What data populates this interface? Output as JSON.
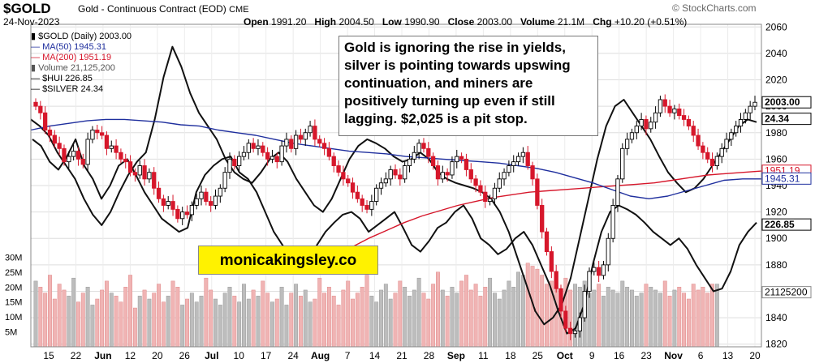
{
  "header": {
    "symbol": "$GOLD",
    "description": "Gold - Continuous Contract (EOD)",
    "exchange": "CME",
    "date": "24-Nov-2023",
    "open_label": "Open",
    "open": "1991.20",
    "high_label": "High",
    "high": "2004.50",
    "low_label": "Low",
    "low": "1990.90",
    "close_label": "Close",
    "close": "2003.00",
    "volume_label": "Volume",
    "volume": "21.1M",
    "chg_label": "Chg",
    "chg": "+10.20 (+0.51%)",
    "source": "© StockCharts.com"
  },
  "legend": {
    "gold": "$GOLD (Daily) 2003.00",
    "ma50": "MA(50) 1945.31",
    "ma200": "MA(200) 1951.19",
    "volume": "Volume 21,125,200",
    "hui": "$HUI 226.85",
    "silver": "$SILVER 24.34"
  },
  "annotation": "Gold is ignoring the rise in yields, silver is pointing towards upswing continuation, and miners are positively turning up even if still lagging. $2,025 is a pit stop.",
  "watermark": "monicakingsley.co",
  "colors": {
    "up": "#000000",
    "down": "#d6172b",
    "ma50": "#1f2f9e",
    "ma200": "#d6172b",
    "vol_up": "#bdbdbd",
    "vol_down": "#f0b4b4",
    "hui": "#111111",
    "silver": "#111111"
  },
  "chart_data": {
    "type": "line",
    "title": "$GOLD (Daily) 2003.00",
    "x_ticks": [
      "15",
      "22",
      "Jun",
      "12",
      "20",
      "26",
      "Jul",
      "10",
      "17",
      "24",
      "Aug",
      "7",
      "14",
      "21",
      "28",
      "Sep",
      "11",
      "18",
      "25",
      "Oct",
      "9",
      "16",
      "23",
      "Nov",
      "6",
      "13",
      "20"
    ],
    "price_ticks": [
      2060,
      2040,
      2020,
      2000,
      1980,
      1960,
      1940,
      1920,
      1900,
      1880,
      1860,
      1840,
      1820
    ],
    "volume_ticks": [
      "30M",
      "25M",
      "20M",
      "15M",
      "10M",
      "5M"
    ],
    "ylim": [
      1818,
      2062
    ],
    "last_values": {
      "gold": "2003.00",
      "silver": "24.34",
      "ma200": "1951.19",
      "ma50": "1945.31",
      "hui": "226.85",
      "volume": "21125200"
    },
    "gold_close": [
      2000,
      1995,
      1982,
      1978,
      1972,
      1968,
      1958,
      1962,
      1966,
      1960,
      1956,
      1975,
      1982,
      1980,
      1978,
      1968,
      1970,
      1965,
      1960,
      1958,
      1950,
      1948,
      1955,
      1945,
      1950,
      1938,
      1930,
      1925,
      1928,
      1922,
      1915,
      1920,
      1918,
      1925,
      1930,
      1935,
      1928,
      1925,
      1932,
      1938,
      1950,
      1960,
      1955,
      1962,
      1965,
      1972,
      1968,
      1970,
      1965,
      1960,
      1962,
      1958,
      1970,
      1975,
      1968,
      1978,
      1975,
      1980,
      1985,
      1975,
      1972,
      1968,
      1962,
      1955,
      1950,
      1945,
      1942,
      1935,
      1930,
      1925,
      1922,
      1928,
      1938,
      1942,
      1945,
      1952,
      1948,
      1945,
      1955,
      1960,
      1965,
      1972,
      1968,
      1962,
      1955,
      1945,
      1950,
      1948,
      1958,
      1962,
      1960,
      1952,
      1945,
      1940,
      1935,
      1928,
      1930,
      1938,
      1945,
      1950,
      1955,
      1958,
      1962,
      1965,
      1955,
      1945,
      1925,
      1905,
      1890,
      1875,
      1862,
      1845,
      1832,
      1828,
      1830,
      1840,
      1860,
      1875,
      1878,
      1872,
      1880,
      1900,
      1925,
      1945,
      1968,
      1975,
      1980,
      1985,
      1990,
      1983,
      1988,
      1995,
      2005,
      2000,
      1995,
      1998,
      1993,
      1990,
      1985,
      1978,
      1970,
      1965,
      1960,
      1955,
      1962,
      1968,
      1975,
      1980,
      1985,
      1990,
      1995,
      2000,
      2003
    ],
    "ma50": [
      1982,
      1985,
      1987,
      1989,
      1990,
      1990,
      1989,
      1988,
      1986,
      1985,
      1982,
      1980,
      1978,
      1975,
      1972,
      1970,
      1968,
      1966,
      1965,
      1964,
      1962,
      1961,
      1960,
      1959,
      1958,
      1957,
      1955,
      1953,
      1950,
      1946,
      1942,
      1937,
      1932,
      1930,
      1932,
      1936,
      1940,
      1944,
      1945,
      1945
    ],
    "ma200": [
      1893,
      1900,
      1906,
      1912,
      1917,
      1921,
      1925,
      1928,
      1931,
      1933,
      1935,
      1936,
      1937,
      1938,
      1939,
      1940,
      1941,
      1942,
      1944,
      1946,
      1948,
      1949,
      1950,
      1951
    ],
    "hui": [
      1975,
      1970,
      1958,
      1952,
      1962,
      1975,
      1955,
      1945,
      1930,
      1940,
      1955,
      1960,
      1948,
      1935,
      1925,
      1915,
      1910,
      1905,
      1908,
      1935,
      1948,
      1955,
      1960,
      1962,
      1950,
      1945,
      1935,
      1920,
      1905,
      1895,
      1885,
      1878,
      1880,
      1895,
      1905,
      1912,
      1918,
      1920,
      1915,
      1905,
      1910,
      1915,
      1920,
      1908,
      1895,
      1890,
      1898,
      1908,
      1912,
      1920,
      1925,
      1915,
      1900,
      1895,
      1888,
      1892,
      1900,
      1905,
      1895,
      1880,
      1865,
      1845,
      1828,
      1832,
      1850,
      1880,
      1905,
      1920,
      1925,
      1922,
      1918,
      1912,
      1905,
      1900,
      1895,
      1900,
      1892,
      1880,
      1870,
      1860,
      1862,
      1875,
      1895,
      1905,
      1912
    ],
    "silver": [
      1990,
      1985,
      1978,
      1965,
      1955,
      1945,
      1930,
      1918,
      1910,
      1920,
      1935,
      1948,
      1958,
      1965,
      1990,
      2022,
      2045,
      2030,
      2010,
      1995,
      1985,
      1975,
      1960,
      1950,
      1945,
      1942,
      1950,
      1960,
      1965,
      1958,
      1945,
      1935,
      1925,
      1920,
      1930,
      1945,
      1960,
      1970,
      1975,
      1972,
      1968,
      1962,
      1958,
      1960,
      1965,
      1960,
      1950,
      1945,
      1942,
      1940,
      1938,
      1935,
      1930,
      1920,
      1905,
      1885,
      1865,
      1845,
      1835,
      1840,
      1850,
      1870,
      1900,
      1930,
      1960,
      1985,
      2000,
      2005,
      1995,
      1985,
      1975,
      1962,
      1950,
      1942,
      1935,
      1938,
      1945,
      1955,
      1965,
      1975,
      1985,
      1990,
      1988
    ],
    "volume_millions": [
      22,
      20,
      18,
      24,
      16,
      21,
      19,
      17,
      23,
      15,
      18,
      20,
      14,
      16,
      19,
      22,
      18,
      17,
      15,
      20,
      24,
      13,
      17,
      19,
      16,
      18,
      21,
      15,
      17,
      22,
      20,
      14,
      16,
      18,
      15,
      17,
      23,
      19,
      16,
      14,
      18,
      20,
      17,
      15,
      21,
      16,
      19,
      17,
      22,
      18,
      15,
      16,
      20,
      14,
      18,
      21,
      17,
      19,
      15,
      16,
      23,
      18,
      20,
      17,
      14,
      19,
      22,
      16,
      18,
      20,
      24,
      17,
      15,
      19,
      21,
      16,
      18,
      22,
      20,
      17,
      19,
      23,
      18,
      16,
      21,
      25,
      19,
      17,
      20,
      18,
      22,
      24,
      19,
      21,
      17,
      20,
      23,
      18,
      16,
      19,
      22,
      20,
      25,
      24,
      28,
      27,
      26,
      24,
      21,
      22,
      20,
      18,
      23,
      19,
      21,
      20,
      22,
      18,
      19,
      21,
      17,
      20,
      19,
      18,
      22,
      20,
      19,
      17,
      18,
      21,
      20,
      19,
      18,
      22,
      17,
      19,
      20,
      18,
      16,
      21,
      19,
      20,
      18,
      21,
      21
    ]
  }
}
